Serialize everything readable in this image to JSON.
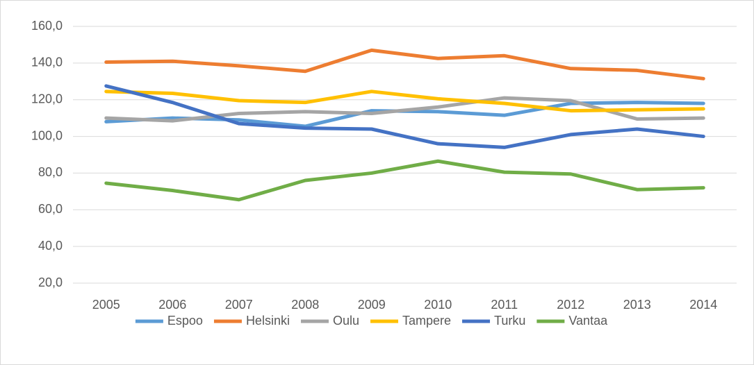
{
  "chart_data": {
    "type": "line",
    "categories": [
      "2005",
      "2006",
      "2007",
      "2008",
      "2009",
      "2010",
      "2011",
      "2012",
      "2013",
      "2014"
    ],
    "series": [
      {
        "name": "Espoo",
        "color": "#5b9bd5",
        "values": [
          108,
          110,
          109,
          105.5,
          114,
          113.5,
          111.5,
          118,
          118.5,
          118
        ]
      },
      {
        "name": "Helsinki",
        "color": "#ed7d31",
        "values": [
          140.5,
          141,
          138.5,
          135.5,
          147,
          142.5,
          144,
          137,
          136,
          131.5
        ]
      },
      {
        "name": "Oulu",
        "color": "#a5a5a5",
        "values": [
          110,
          108.5,
          112.5,
          113.5,
          112.5,
          116,
          121,
          119.5,
          109.5,
          110
        ]
      },
      {
        "name": "Tampere",
        "color": "#ffc000",
        "values": [
          124.5,
          123.5,
          119.5,
          118.5,
          124.5,
          120.5,
          118,
          114,
          114.5,
          115
        ]
      },
      {
        "name": "Turku",
        "color": "#4472c4",
        "values": [
          127.5,
          118.5,
          107,
          104.5,
          104,
          96,
          94,
          101,
          104,
          100
        ]
      },
      {
        "name": "Vantaa",
        "color": "#70ad47",
        "values": [
          74.5,
          70.5,
          65.5,
          76,
          80,
          86.5,
          80.5,
          79.5,
          71,
          72
        ]
      }
    ],
    "ylim": [
      20,
      160
    ],
    "yticks": [
      {
        "value": 20,
        "label": "20,0"
      },
      {
        "value": 40,
        "label": "40,0"
      },
      {
        "value": 60,
        "label": "60,0"
      },
      {
        "value": 80,
        "label": "80,0"
      },
      {
        "value": 100,
        "label": "100,0"
      },
      {
        "value": 120,
        "label": "120,0"
      },
      {
        "value": 140,
        "label": "140,0"
      },
      {
        "value": 160,
        "label": "160,0"
      }
    ],
    "grid": true,
    "legend": "bottom"
  }
}
